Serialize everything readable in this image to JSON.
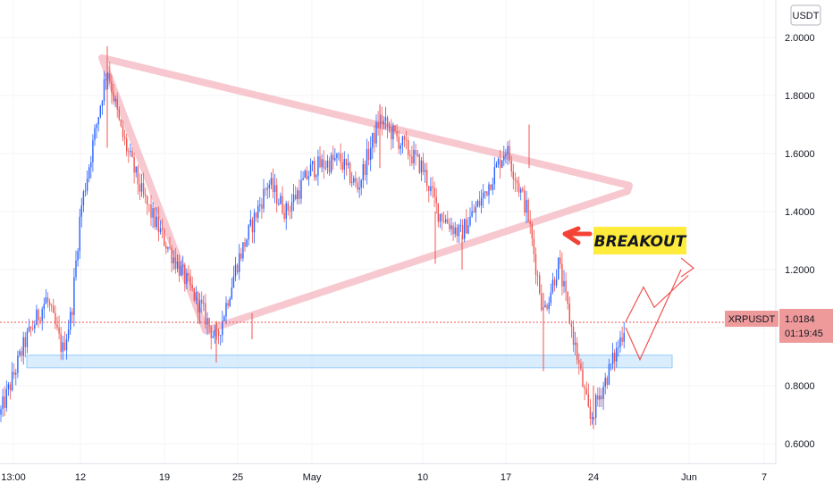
{
  "currency_badge": "USDT",
  "symbol_label": "XRPUSDT",
  "current_price": "1.0184",
  "countdown": "01:19:45",
  "annotation": "BREAKOUT",
  "colors": {
    "up": "#2962ff",
    "down": "#ef5350",
    "triangle": "#f4b6bf",
    "support_fill": "#bbdefb",
    "support_stroke": "#90caf9",
    "arrow": "#f44336",
    "annotation_bg": "#ffeb3b",
    "price_tag": "#ef9a9a",
    "projection": "#ef5350"
  },
  "chart_data": {
    "type": "candlestick",
    "symbol": "XRPUSDT",
    "currency": "USDT",
    "ylim": [
      0.5,
      2.1
    ],
    "y_ticks": [
      "0.6000",
      "0.8000",
      "1.0000",
      "1.2000",
      "1.4000",
      "1.6000",
      "1.8000",
      "2.0000"
    ],
    "x_ticks": [
      "13:00",
      "12",
      "19",
      "25",
      "May",
      "10",
      "17",
      "24",
      "Jun",
      "7"
    ],
    "current_price": 1.0184,
    "price_path": [
      [
        "13:00",
        0.7
      ],
      [
        "",
        0.95
      ],
      [
        "",
        1.1
      ],
      [
        "",
        0.92
      ],
      [
        "",
        1.05
      ],
      [
        "12",
        1.4
      ],
      [
        "",
        1.9
      ],
      [
        "",
        1.68
      ],
      [
        "",
        1.45
      ],
      [
        "19",
        1.3
      ],
      [
        "",
        1.18
      ],
      [
        "",
        1.05
      ],
      [
        "25",
        0.95
      ],
      [
        "",
        1.22
      ],
      [
        "",
        1.5
      ],
      [
        "",
        1.4
      ],
      [
        "May",
        1.55
      ],
      [
        "",
        1.58
      ],
      [
        "",
        1.48
      ],
      [
        "",
        1.72
      ],
      [
        "10",
        1.55
      ],
      [
        "",
        1.4
      ],
      [
        "",
        1.32
      ],
      [
        "",
        1.45
      ],
      [
        "17",
        1.62
      ],
      [
        "",
        1.4
      ],
      [
        "",
        1.05
      ],
      [
        "",
        1.22
      ],
      [
        "24",
        0.68
      ],
      [
        "",
        0.92
      ],
      [
        "",
        1.02
      ]
    ],
    "triangle_resistance": [
      [
        "12",
        1.93
      ],
      [
        "Jun",
        1.49
      ]
    ],
    "triangle_support": [
      [
        "25",
        0.99
      ],
      [
        "Jun",
        1.47
      ]
    ],
    "support_zone": [
      0.862,
      0.905
    ],
    "projection_path": [
      [
        "24",
        1.02
      ],
      [
        "",
        0.89
      ],
      [
        "",
        1.2
      ]
    ]
  }
}
